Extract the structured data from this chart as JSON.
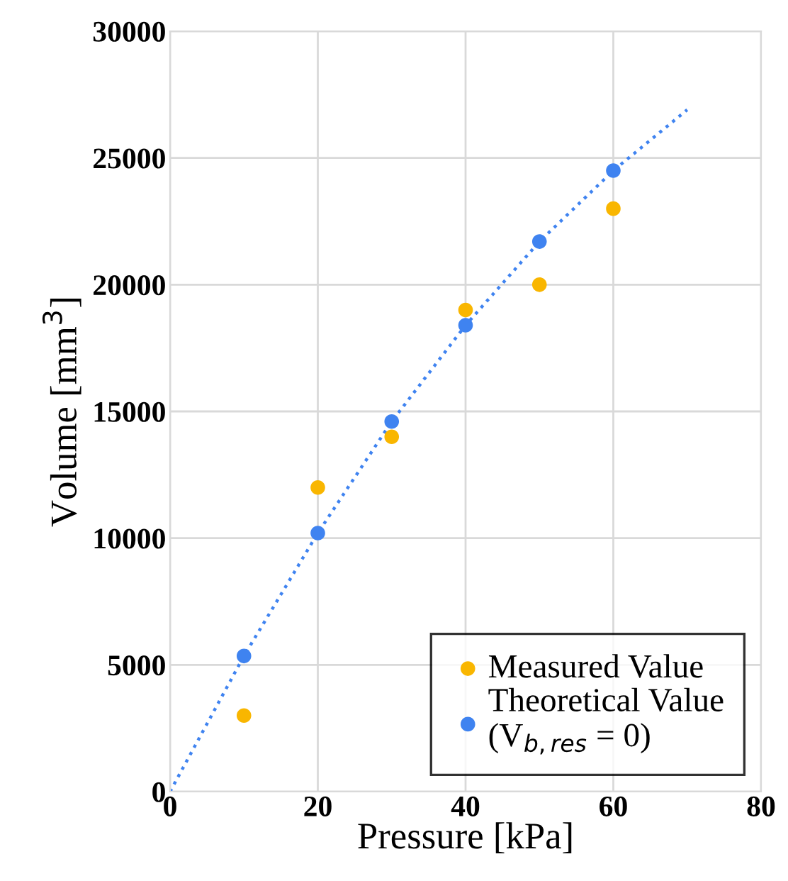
{
  "chart_data": {
    "type": "scatter",
    "xlabel": "Pressure [kPa]",
    "ylabel": "Volume [mm$^{3}$]",
    "x": [
      10,
      20,
      30,
      40,
      50,
      60
    ],
    "series": [
      {
        "name": "Measured Value",
        "color": "#f9b600",
        "values": [
          3000,
          12000,
          14000,
          19000,
          20000,
          23000
        ]
      },
      {
        "name": "Theoretical Value\n(V$_{b,res}$ = 0)",
        "color": "#3f83f0",
        "values": [
          5350,
          10200,
          14600,
          18400,
          21700,
          24500
        ]
      },
      {
        "type": "line",
        "color": "#3f83f0",
        "line_style": "dotted",
        "marker": "none",
        "x": [
          0,
          10,
          20,
          30,
          40,
          50,
          60,
          70
        ],
        "values": [
          0,
          5350,
          10200,
          14600,
          18400,
          21700,
          24500,
          26900
        ]
      }
    ],
    "xlim": [
      0,
      80
    ],
    "xticks": [
      0,
      20,
      40,
      60,
      80
    ],
    "ylim": [
      0,
      30000
    ],
    "yticks": [
      0,
      5000,
      10000,
      15000,
      20000,
      25000,
      30000
    ],
    "grid": true,
    "legend": "bottom right",
    "marker": "circle"
  }
}
